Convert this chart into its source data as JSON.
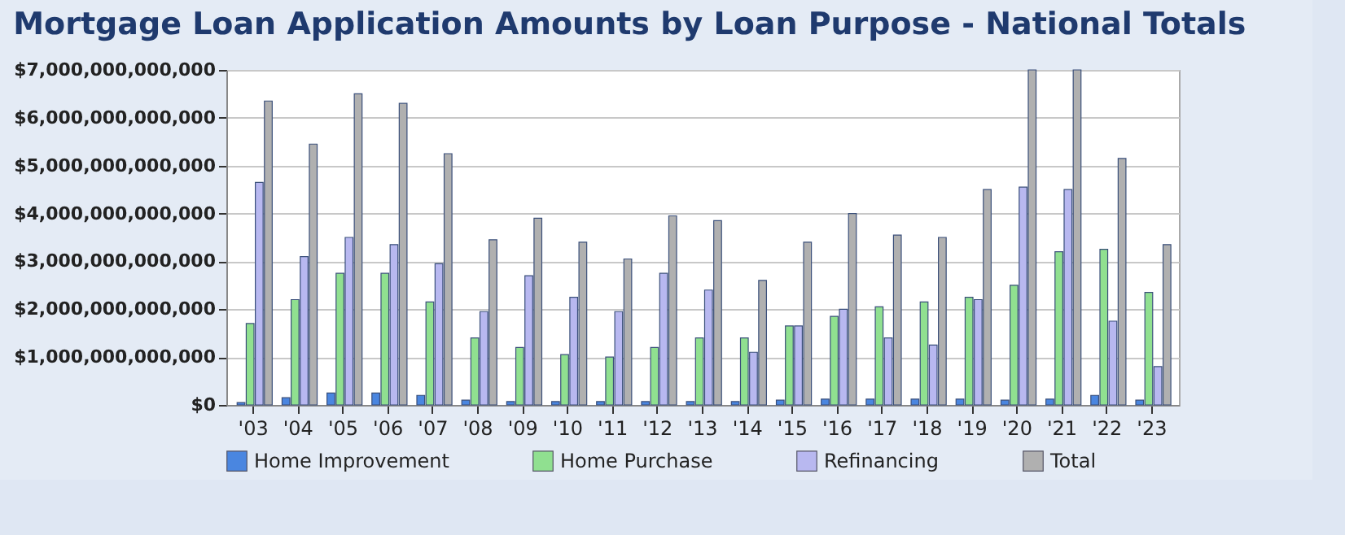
{
  "chart_data": {
    "type": "bar",
    "title": "Mortgage Loan Application Amounts by Loan Purpose - National Totals",
    "categories": [
      "'03",
      "'04",
      "'05",
      "'06",
      "'07",
      "'08",
      "'09",
      "'10",
      "'11",
      "'12",
      "'13",
      "'14",
      "'15",
      "'16",
      "'17",
      "'18",
      "'19",
      "'20",
      "'21",
      "'22",
      "'23"
    ],
    "series": [
      {
        "name": "Home Improvement",
        "color": "#4a86e0",
        "values": [
          50000000000,
          150000000000,
          250000000000,
          250000000000,
          200000000000,
          100000000000,
          70000000000,
          70000000000,
          70000000000,
          70000000000,
          70000000000,
          70000000000,
          100000000000,
          120000000000,
          120000000000,
          120000000000,
          120000000000,
          100000000000,
          120000000000,
          200000000000,
          100000000000
        ]
      },
      {
        "name": "Home Purchase",
        "color": "#90e090",
        "values": [
          1700000000000,
          2200000000000,
          2750000000000,
          2750000000000,
          2150000000000,
          1400000000000,
          1200000000000,
          1050000000000,
          1000000000000,
          1200000000000,
          1400000000000,
          1400000000000,
          1650000000000,
          1850000000000,
          2050000000000,
          2150000000000,
          2250000000000,
          2500000000000,
          3200000000000,
          3250000000000,
          2350000000000
        ]
      },
      {
        "name": "Refinancing",
        "color": "#b8b8f0",
        "values": [
          4650000000000,
          3100000000000,
          3500000000000,
          3350000000000,
          2950000000000,
          1950000000000,
          2700000000000,
          2250000000000,
          1950000000000,
          2750000000000,
          2400000000000,
          1100000000000,
          1650000000000,
          2000000000000,
          1400000000000,
          1250000000000,
          2200000000000,
          4550000000000,
          4500000000000,
          1750000000000,
          800000000000
        ]
      },
      {
        "name": "Total",
        "color": "#b0b0b0",
        "values": [
          6350000000000,
          5450000000000,
          6500000000000,
          6300000000000,
          5250000000000,
          3450000000000,
          3900000000000,
          3400000000000,
          3050000000000,
          3950000000000,
          3850000000000,
          2600000000000,
          3400000000000,
          4000000000000,
          3550000000000,
          3500000000000,
          4500000000000,
          7000000000000,
          7000000000000,
          5150000000000,
          3350000000000
        ]
      }
    ],
    "ylim": [
      0,
      7000000000000
    ],
    "yticks": [
      {
        "value": 0,
        "label": "$0"
      },
      {
        "value": 1000000000000,
        "label": "$1,000,000,000,000"
      },
      {
        "value": 2000000000000,
        "label": "$2,000,000,000,000"
      },
      {
        "value": 3000000000000,
        "label": "$3,000,000,000,000"
      },
      {
        "value": 4000000000000,
        "label": "$4,000,000,000,000"
      },
      {
        "value": 5000000000000,
        "label": "$5,000,000,000,000"
      },
      {
        "value": 6000000000000,
        "label": "$6,000,000,000,000"
      },
      {
        "value": 7000000000000,
        "label": "$7,000,000,000,000"
      }
    ],
    "grid": "y",
    "legend": "bottom"
  }
}
